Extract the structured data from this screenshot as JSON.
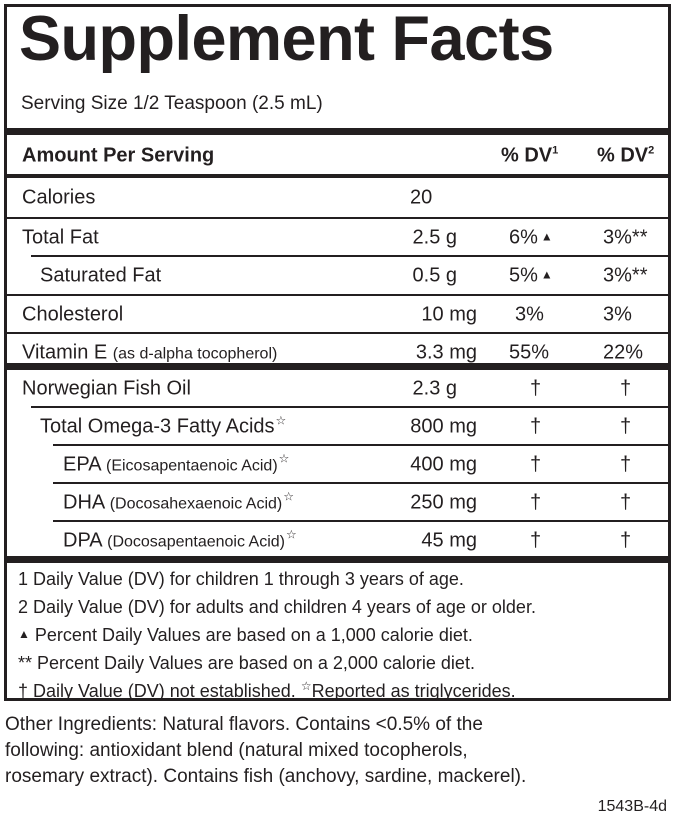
{
  "title": "Supplement Facts",
  "serving": "Serving Size 1/2 Teaspoon (2.5 mL)",
  "header": {
    "amount": "Amount Per Serving",
    "dv1": "% DV",
    "dv1_sup": "1",
    "dv2": "% DV",
    "dv2_sup": "2"
  },
  "nutrients": [
    {
      "name": "Calories",
      "amount": "20",
      "dv1": "",
      "dv2": ""
    },
    {
      "name": "Total Fat",
      "amount": "2.5 g",
      "dv1": "6%",
      "dv2": "3%**"
    },
    {
      "name": "Saturated Fat",
      "amount": "0.5 g",
      "dv1": "5%",
      "dv2": "3%**"
    },
    {
      "name": "Cholesterol",
      "amount": "10 mg",
      "dv1": "3%",
      "dv2": "3%"
    },
    {
      "name": "Vitamin E",
      "name_small": "(as d-alpha tocopherol)",
      "amount": "3.3 mg",
      "dv1": "55%",
      "dv2": "22%"
    }
  ],
  "oils": [
    {
      "name": "Norwegian Fish Oil",
      "amount": "2.3 g",
      "dv1": "†",
      "dv2": "†"
    },
    {
      "name": "Total Omega-3 Fatty Acids",
      "amount": "800 mg",
      "dv1": "†",
      "dv2": "†"
    },
    {
      "name": "EPA",
      "name_small": "(Eicosapentaenoic Acid)",
      "amount": "400 mg",
      "dv1": "†",
      "dv2": "†"
    },
    {
      "name": "DHA",
      "name_small": "(Docosahexaenoic Acid)",
      "amount": "250 mg",
      "dv1": "†",
      "dv2": "†"
    },
    {
      "name": "DPA",
      "name_small": "(Docosapentaenoic Acid)",
      "amount": "45 mg",
      "dv1": "†",
      "dv2": "†"
    }
  ],
  "symbols": {
    "triangle": "▲",
    "star": "☆"
  },
  "footnotes": {
    "f1": "1 Daily Value (DV) for children 1 through 3 years of age.",
    "f2": "2 Daily Value (DV) for adults and children 4 years of age or older.",
    "f3": "Percent Daily Values are based on a 1,000 calorie diet.",
    "f4": "** Percent Daily Values are based on a 2,000 calorie diet.",
    "f5a": "† Daily Value (DV) not established.",
    "f5b": "Reported as triglycerides."
  },
  "other_ingredients": [
    "Other Ingredients: Natural flavors. Contains <0.5% of the",
    "following: antioxidant blend (natural mixed tocopherols,",
    "rosemary extract). Contains fish (anchovy, sardine, mackerel)."
  ],
  "code": "1543B-4d"
}
